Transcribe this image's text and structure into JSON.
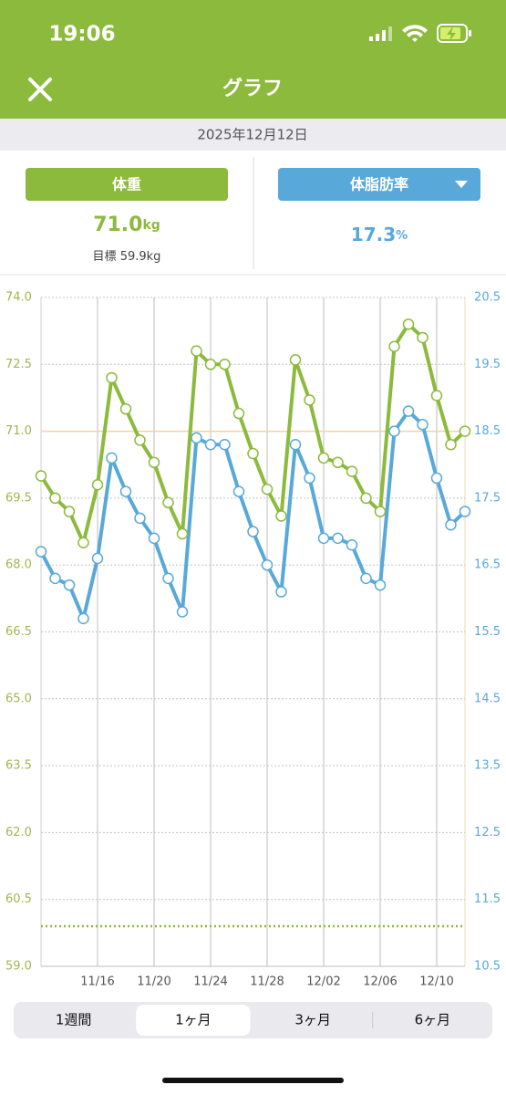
{
  "status_bar": {
    "time": "19:06"
  },
  "header": {
    "title": "グラフ"
  },
  "date": "2025年12月12日",
  "weight_panel": {
    "button": "体重",
    "value": "71.0",
    "unit": "kg",
    "goal_label": "目標",
    "goal": "59.9kg"
  },
  "fat_panel": {
    "button": "体脂肪率",
    "value": "17.3",
    "unit": "%"
  },
  "tabs": [
    "1週間",
    "1ヶ月",
    "3ヶ月",
    "6ヶ月"
  ],
  "selected_tab": 1,
  "chart_data": {
    "type": "line",
    "categories": [
      null,
      null,
      null,
      null,
      "11/16",
      null,
      null,
      null,
      "11/20",
      null,
      null,
      null,
      "11/24",
      null,
      null,
      null,
      "11/28",
      null,
      null,
      null,
      "12/02",
      null,
      null,
      null,
      "12/06",
      null,
      null,
      null,
      "12/10",
      null,
      null
    ],
    "series": [
      {
        "name": "体重",
        "color": "#8cba3c",
        "axis": "y",
        "values": [
          70.0,
          69.5,
          69.2,
          68.5,
          69.8,
          72.2,
          71.5,
          70.8,
          70.3,
          69.4,
          68.7,
          72.8,
          72.5,
          72.5,
          71.4,
          70.5,
          69.7,
          69.1,
          72.6,
          71.7,
          70.4,
          70.3,
          70.1,
          69.5,
          69.2,
          72.9,
          73.4,
          73.1,
          71.8,
          70.7,
          71.0
        ]
      },
      {
        "name": "体脂肪率",
        "color": "#58a9d9",
        "axis": "y2",
        "values": [
          16.7,
          16.3,
          16.2,
          15.7,
          16.6,
          18.1,
          17.6,
          17.2,
          16.9,
          16.3,
          15.8,
          18.4,
          18.3,
          18.3,
          17.6,
          17.0,
          16.5,
          16.1,
          18.3,
          17.8,
          16.9,
          16.9,
          16.8,
          16.3,
          16.2,
          18.5,
          18.8,
          18.6,
          17.8,
          17.1,
          17.3
        ]
      }
    ],
    "ylim": [
      59.0,
      74.0
    ],
    "yticks": [
      {
        "value": 59,
        "label": "59.0"
      },
      60.5,
      {
        "value": 62,
        "label": "62.0"
      },
      63.5,
      {
        "value": 65,
        "label": "65.0"
      },
      66.5,
      {
        "value": 68,
        "label": "68.0"
      },
      69.5,
      {
        "value": 71,
        "label": "71.0"
      },
      72.5,
      {
        "value": 74,
        "label": "74.0"
      }
    ],
    "y2lim": [
      10.5,
      20.5
    ],
    "y2ticks": [
      10.5,
      11.5,
      12.5,
      13.5,
      14.5,
      15.5,
      16.5,
      17.5,
      18.5,
      19.5,
      20.5
    ],
    "goal_line": 59.9,
    "grid": true
  }
}
